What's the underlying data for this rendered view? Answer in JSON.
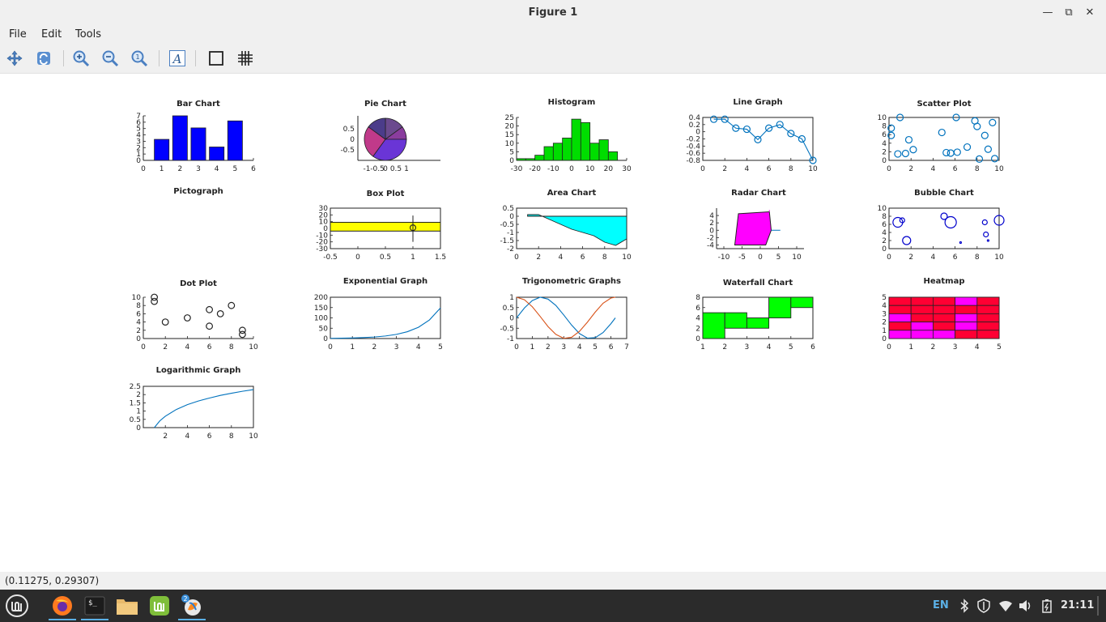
{
  "window": {
    "title": "Figure 1"
  },
  "menu": [
    "File",
    "Edit",
    "Tools"
  ],
  "toolbar": [
    "pan",
    "rotate",
    "zoom-in",
    "zoom-out",
    "zoom-reset",
    "insert-text",
    "axes-box",
    "grid"
  ],
  "status": {
    "coords": "(0.11275, 0.29307)"
  },
  "taskbar": {
    "badge": "2",
    "lang": "EN",
    "clock": "21:11"
  },
  "colors": {
    "bar": "#0000ff",
    "histogram": "#00dd00",
    "area": "#00ffff",
    "radar": "#ff00ff",
    "boxplot": "#ffff00",
    "waterfall": "#00ff00",
    "line": "#0072bd",
    "line2": "#d95319"
  },
  "chart_data": [
    {
      "title": "Bar Chart",
      "type": "bar",
      "x": [
        1,
        2,
        3,
        4,
        5
      ],
      "values": [
        3.3,
        7,
        5.1,
        2.1,
        6.2
      ],
      "xlim": [
        0,
        6
      ],
      "ylim": [
        0,
        7
      ],
      "xticks": [
        "0",
        "1",
        "2",
        "3",
        "4",
        "5",
        "6"
      ],
      "yticks": [
        "0",
        "1",
        "2",
        "3",
        "4",
        "5",
        "6",
        "7"
      ]
    },
    {
      "title": "Pie Chart",
      "type": "pie",
      "values": [
        15,
        10,
        35,
        25,
        15
      ],
      "slice_colors": [
        "#6b4a8e",
        "#8a3d9e",
        "#6a35d6",
        "#c03a8a",
        "#4b3c8a"
      ],
      "xticks": [
        "-1",
        "-0.5",
        "0",
        "0.5",
        "1"
      ],
      "yticks": [
        "0.5",
        "0",
        "-0.5"
      ]
    },
    {
      "title": "Histogram",
      "type": "bar",
      "bin_edges": [
        -30,
        -25,
        -20,
        -15,
        -10,
        -5,
        0,
        5,
        10,
        15,
        20,
        25,
        30
      ],
      "values": [
        1,
        1,
        3,
        8,
        10,
        13,
        24,
        22,
        10,
        12,
        5,
        0
      ],
      "xlim": [
        -30,
        30
      ],
      "ylim": [
        0,
        25
      ],
      "xticks": [
        "-30",
        "-20",
        "-10",
        "0",
        "10",
        "20",
        "30"
      ],
      "yticks": [
        "0",
        "5",
        "10",
        "15",
        "20",
        "25"
      ]
    },
    {
      "title": "Line Graph",
      "type": "line",
      "x": [
        1,
        2,
        3,
        4,
        5,
        6,
        7,
        8,
        9,
        10
      ],
      "values": [
        0.35,
        0.35,
        0.1,
        0.07,
        -0.22,
        0.1,
        0.2,
        -0.05,
        -0.2,
        -0.8
      ],
      "xlim": [
        0,
        10
      ],
      "ylim": [
        -0.8,
        0.4
      ],
      "xticks": [
        "0",
        "2",
        "4",
        "6",
        "8",
        "10"
      ],
      "yticks": [
        "-0.8",
        "-0.6",
        "-0.4",
        "-0.2",
        "0",
        "0.2",
        "0.4"
      ]
    },
    {
      "title": "Scatter Plot",
      "type": "scatter",
      "x": [
        0.2,
        0.2,
        1.0,
        0.8,
        1.5,
        1.8,
        2.2,
        4.8,
        5.2,
        5.6,
        6.1,
        6.2,
        7.1,
        7.8,
        8.0,
        8.2,
        8.7,
        9.0,
        9.4,
        9.6
      ],
      "values": [
        7.5,
        5.8,
        10,
        1.5,
        1.6,
        4.8,
        2.5,
        6.5,
        1.8,
        1.7,
        10,
        1.9,
        3.1,
        9.2,
        7.9,
        0.3,
        5.8,
        2.6,
        8.8,
        0.4
      ],
      "xlim": [
        0,
        10
      ],
      "ylim": [
        0,
        10
      ],
      "xticks": [
        "0",
        "2",
        "4",
        "6",
        "8",
        "10"
      ],
      "yticks": [
        "0",
        "2",
        "4",
        "6",
        "8",
        "10"
      ]
    },
    {
      "title": "Pictograph",
      "type": "table"
    },
    {
      "title": "Box Plot",
      "type": "bar",
      "q1": -4,
      "q3": 9,
      "median": 2,
      "whisker_low": -20,
      "whisker_high": 19,
      "outlier": 1,
      "xlim": [
        -0.5,
        1.5
      ],
      "ylim": [
        -30,
        30
      ],
      "xticks": [
        "-0.5",
        "0",
        "0.5",
        "1",
        "1.5"
      ],
      "yticks": [
        "-30",
        "-20",
        "-10",
        "0",
        "10",
        "20",
        "30"
      ]
    },
    {
      "title": "Area Chart",
      "type": "area",
      "x": [
        1,
        2,
        3,
        4,
        5,
        6,
        7,
        8,
        9,
        10
      ],
      "values": [
        0.1,
        0.1,
        -0.2,
        -0.5,
        -0.8,
        -1.0,
        -1.2,
        -1.6,
        -1.8,
        -1.4
      ],
      "xlim": [
        0,
        10
      ],
      "ylim": [
        -2,
        0.5
      ],
      "xticks": [
        "0",
        "2",
        "4",
        "6",
        "8",
        "10"
      ],
      "yticks": [
        "-2",
        "-1.5",
        "-1",
        "-0.5",
        "0",
        "0.5"
      ]
    },
    {
      "title": "Radar Chart",
      "type": "area",
      "vertices": [
        [
          -6,
          4.5
        ],
        [
          2.5,
          5
        ],
        [
          3,
          0
        ],
        [
          1.5,
          -4
        ],
        [
          -7,
          -4
        ]
      ],
      "spokes": [
        [
          2.5,
          5.5
        ],
        [
          5.5,
          0
        ]
      ],
      "xlim": [
        -12,
        12
      ],
      "ylim": [
        -5,
        6
      ],
      "xticks": [
        "-10",
        "-5",
        "0",
        "5",
        "10"
      ],
      "yticks": [
        "-4",
        "-2",
        "0",
        "2",
        "4"
      ]
    },
    {
      "title": "Bubble Chart",
      "type": "scatter",
      "x": [
        0.8,
        1.2,
        1.6,
        5.0,
        5.6,
        6.5,
        8.7,
        8.8,
        9.0,
        10.0
      ],
      "values": [
        6.5,
        7.0,
        2.0,
        8.0,
        6.5,
        1.5,
        6.5,
        3.5,
        2.0,
        7.0
      ],
      "sizes": [
        6,
        3,
        5,
        4,
        7,
        0.5,
        3,
        3,
        0.5,
        6
      ],
      "xlim": [
        0,
        10
      ],
      "ylim": [
        0,
        10
      ],
      "xticks": [
        "0",
        "2",
        "4",
        "6",
        "8",
        "10"
      ],
      "yticks": [
        "0",
        "2",
        "4",
        "6",
        "8",
        "10"
      ]
    },
    {
      "title": "Dot Plot",
      "type": "scatter",
      "x": [
        1,
        1,
        2,
        4,
        6,
        6,
        7,
        8,
        9,
        9
      ],
      "values": [
        10,
        9,
        4,
        5,
        7,
        3,
        6,
        8,
        2,
        1
      ],
      "xlim": [
        0,
        10
      ],
      "ylim": [
        0,
        10
      ],
      "xticks": [
        "0",
        "2",
        "4",
        "6",
        "8",
        "10"
      ],
      "yticks": [
        "0",
        "2",
        "4",
        "6",
        "8",
        "10"
      ]
    },
    {
      "title": "Exponential Graph",
      "type": "line",
      "x": [
        0,
        0.5,
        1,
        1.5,
        2,
        2.5,
        3,
        3.5,
        4,
        4.5,
        5
      ],
      "values": [
        1,
        1.6,
        2.7,
        4.5,
        7.4,
        12.2,
        20.1,
        33.1,
        54.6,
        90,
        148
      ],
      "xlim": [
        0,
        5
      ],
      "ylim": [
        0,
        200
      ],
      "xticks": [
        "0",
        "1",
        "2",
        "3",
        "4",
        "5"
      ],
      "yticks": [
        "0",
        "50",
        "100",
        "150",
        "200"
      ]
    },
    {
      "title": "Trigonometric Graphs",
      "type": "line",
      "x": [
        0,
        0.5,
        1,
        1.5,
        2,
        2.5,
        3,
        3.5,
        4,
        4.5,
        5,
        5.5,
        6,
        6.28
      ],
      "series": [
        {
          "values": [
            0,
            0.48,
            0.84,
            1,
            0.91,
            0.6,
            0.14,
            -0.35,
            -0.76,
            -0.98,
            -0.96,
            -0.71,
            -0.28,
            0
          ]
        },
        {
          "values": [
            1,
            0.88,
            0.54,
            0.07,
            -0.42,
            -0.8,
            -0.99,
            -0.94,
            -0.65,
            -0.21,
            0.28,
            0.71,
            0.96,
            1
          ]
        }
      ],
      "xlim": [
        0,
        7
      ],
      "ylim": [
        -1,
        1
      ],
      "xticks": [
        "0",
        "1",
        "2",
        "3",
        "4",
        "5",
        "6",
        "7"
      ],
      "yticks": [
        "-1",
        "-0.5",
        "0",
        "0.5",
        "1"
      ]
    },
    {
      "title": "Waterfall Chart",
      "type": "bar",
      "x": [
        1,
        2,
        3,
        4,
        5
      ],
      "bar_bottoms": [
        0,
        2,
        2,
        4,
        6
      ],
      "bar_tops": [
        5,
        5,
        4,
        8,
        8
      ],
      "xlim": [
        1,
        6
      ],
      "ylim": [
        0,
        8
      ],
      "xticks": [
        "1",
        "2",
        "3",
        "4",
        "5",
        "6"
      ],
      "yticks": [
        "0",
        "2",
        "4",
        "6",
        "8"
      ]
    },
    {
      "title": "Heatmap",
      "type": "heatmap",
      "rows": [
        [
          1,
          1,
          1,
          2,
          1
        ],
        [
          1,
          1,
          1,
          1,
          1
        ],
        [
          2,
          1,
          1,
          2,
          1
        ],
        [
          1,
          2,
          1,
          2,
          1
        ],
        [
          2,
          2,
          2,
          1,
          1
        ]
      ],
      "cell_colors": [
        "#ff0000",
        "#ff0033",
        "#ff00ff"
      ],
      "xlim": [
        0,
        5
      ],
      "ylim": [
        0,
        5
      ],
      "xticks": [
        "0",
        "1",
        "2",
        "3",
        "4",
        "5"
      ],
      "yticks": [
        "0",
        "1",
        "2",
        "3",
        "4",
        "5"
      ]
    },
    {
      "title": "Logarithmic Graph",
      "type": "line",
      "x": [
        1,
        1.5,
        2,
        3,
        4,
        5,
        6,
        7,
        8,
        9,
        10
      ],
      "values": [
        0,
        0.41,
        0.69,
        1.1,
        1.39,
        1.61,
        1.79,
        1.95,
        2.08,
        2.2,
        2.3
      ],
      "xlim": [
        0,
        10
      ],
      "ylim": [
        0,
        2.5
      ],
      "xticks": [
        "2",
        "4",
        "6",
        "8",
        "10"
      ],
      "yticks": [
        "0",
        "0.5",
        "1",
        "1.5",
        "2",
        "2.5"
      ]
    }
  ]
}
